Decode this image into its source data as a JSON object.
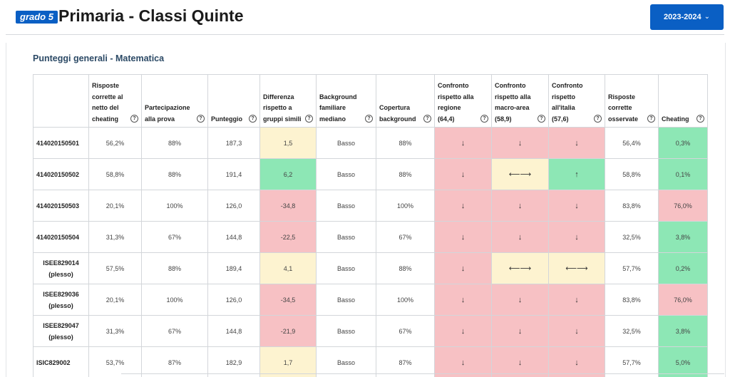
{
  "header": {
    "badge": "grado 5",
    "title": "Primaria - Classi Quinte",
    "year": "2023-2024"
  },
  "section": {
    "title": "Punteggi generali - Matematica"
  },
  "table": {
    "columns": [
      {
        "label": "",
        "help": false
      },
      {
        "label": "Risposte corrette al netto del cheating",
        "help": true
      },
      {
        "label": "Partecipazione alla prova",
        "help": true
      },
      {
        "label": "Punteggio",
        "help": true
      },
      {
        "label": "Differenza rispetto a gruppi simili",
        "help": true
      },
      {
        "label": "Background familiare mediano",
        "help": true
      },
      {
        "label": "Copertura background",
        "help": true
      },
      {
        "label": "Confronto rispetto alla regione (64,4)",
        "help": true
      },
      {
        "label": "Confronto rispetto alla macro-area (58,9)",
        "help": true
      },
      {
        "label": "Confronto rispetto all'italia (57,6)",
        "help": true
      },
      {
        "label": "Risposte corrette osservate",
        "help": true
      },
      {
        "label": "Cheating",
        "help": true
      }
    ],
    "help_glyph": "?",
    "rows": [
      {
        "school": [
          "414020150501"
        ],
        "cells": [
          "56,2%",
          "88%",
          "187,3",
          "1,5",
          "Basso",
          "88%",
          "↓",
          "↓",
          "↓",
          "56,4%",
          "0,3%"
        ],
        "colors": [
          "",
          "",
          "",
          "yellow",
          "",
          "",
          "red",
          "red",
          "red",
          "",
          "green"
        ]
      },
      {
        "school": [
          "414020150502"
        ],
        "cells": [
          "58,8%",
          "88%",
          "191,4",
          "6,2",
          "Basso",
          "88%",
          "↓",
          "⟵⟶",
          "↑",
          "58,8%",
          "0,1%"
        ],
        "colors": [
          "",
          "",
          "",
          "green",
          "",
          "",
          "red",
          "yellow",
          "green",
          "",
          "green"
        ]
      },
      {
        "school": [
          "414020150503"
        ],
        "cells": [
          "20,1%",
          "100%",
          "126,0",
          "-34,8",
          "Basso",
          "100%",
          "↓",
          "↓",
          "↓",
          "83,8%",
          "76,0%"
        ],
        "colors": [
          "",
          "",
          "",
          "red",
          "",
          "",
          "red",
          "red",
          "red",
          "",
          "red"
        ]
      },
      {
        "school": [
          "414020150504"
        ],
        "cells": [
          "31,3%",
          "67%",
          "144,8",
          "-22,5",
          "Basso",
          "67%",
          "↓",
          "↓",
          "↓",
          "32,5%",
          "3,8%"
        ],
        "colors": [
          "",
          "",
          "",
          "red",
          "",
          "",
          "red",
          "red",
          "red",
          "",
          "green"
        ]
      },
      {
        "school": [
          "ISEE829014",
          "(plesso)"
        ],
        "cells": [
          "57,5%",
          "88%",
          "189,4",
          "4,1",
          "Basso",
          "88%",
          "↓",
          "⟵⟶",
          "⟵⟶",
          "57,7%",
          "0,2%"
        ],
        "colors": [
          "",
          "",
          "",
          "yellow",
          "",
          "",
          "red",
          "yellow",
          "yellow",
          "",
          "green"
        ]
      },
      {
        "school": [
          "ISEE829036",
          "(plesso)"
        ],
        "cells": [
          "20,1%",
          "100%",
          "126,0",
          "-34,5",
          "Basso",
          "100%",
          "↓",
          "↓",
          "↓",
          "83,8%",
          "76,0%"
        ],
        "colors": [
          "",
          "",
          "",
          "red",
          "",
          "",
          "red",
          "red",
          "red",
          "",
          "red"
        ]
      },
      {
        "school": [
          "ISEE829047",
          "(plesso)"
        ],
        "cells": [
          "31,3%",
          "67%",
          "144,8",
          "-21,9",
          "Basso",
          "67%",
          "↓",
          "↓",
          "↓",
          "32,5%",
          "3,8%"
        ],
        "colors": [
          "",
          "",
          "",
          "red",
          "",
          "",
          "red",
          "red",
          "red",
          "",
          "green"
        ]
      },
      {
        "school": [
          "ISIC829002"
        ],
        "cells": [
          "53,7%",
          "87%",
          "182,9",
          "1,7",
          "Basso",
          "87%",
          "↓",
          "↓",
          "↓",
          "57,7%",
          "5,0%"
        ],
        "colors": [
          "",
          "",
          "",
          "yellow",
          "",
          "",
          "red",
          "red",
          "red",
          "",
          "green"
        ]
      }
    ]
  },
  "colors": {
    "primary": "#0a5fc4",
    "red": "#f7c1c4",
    "yellow": "#fdf3d0",
    "green": "#8de7b5"
  }
}
